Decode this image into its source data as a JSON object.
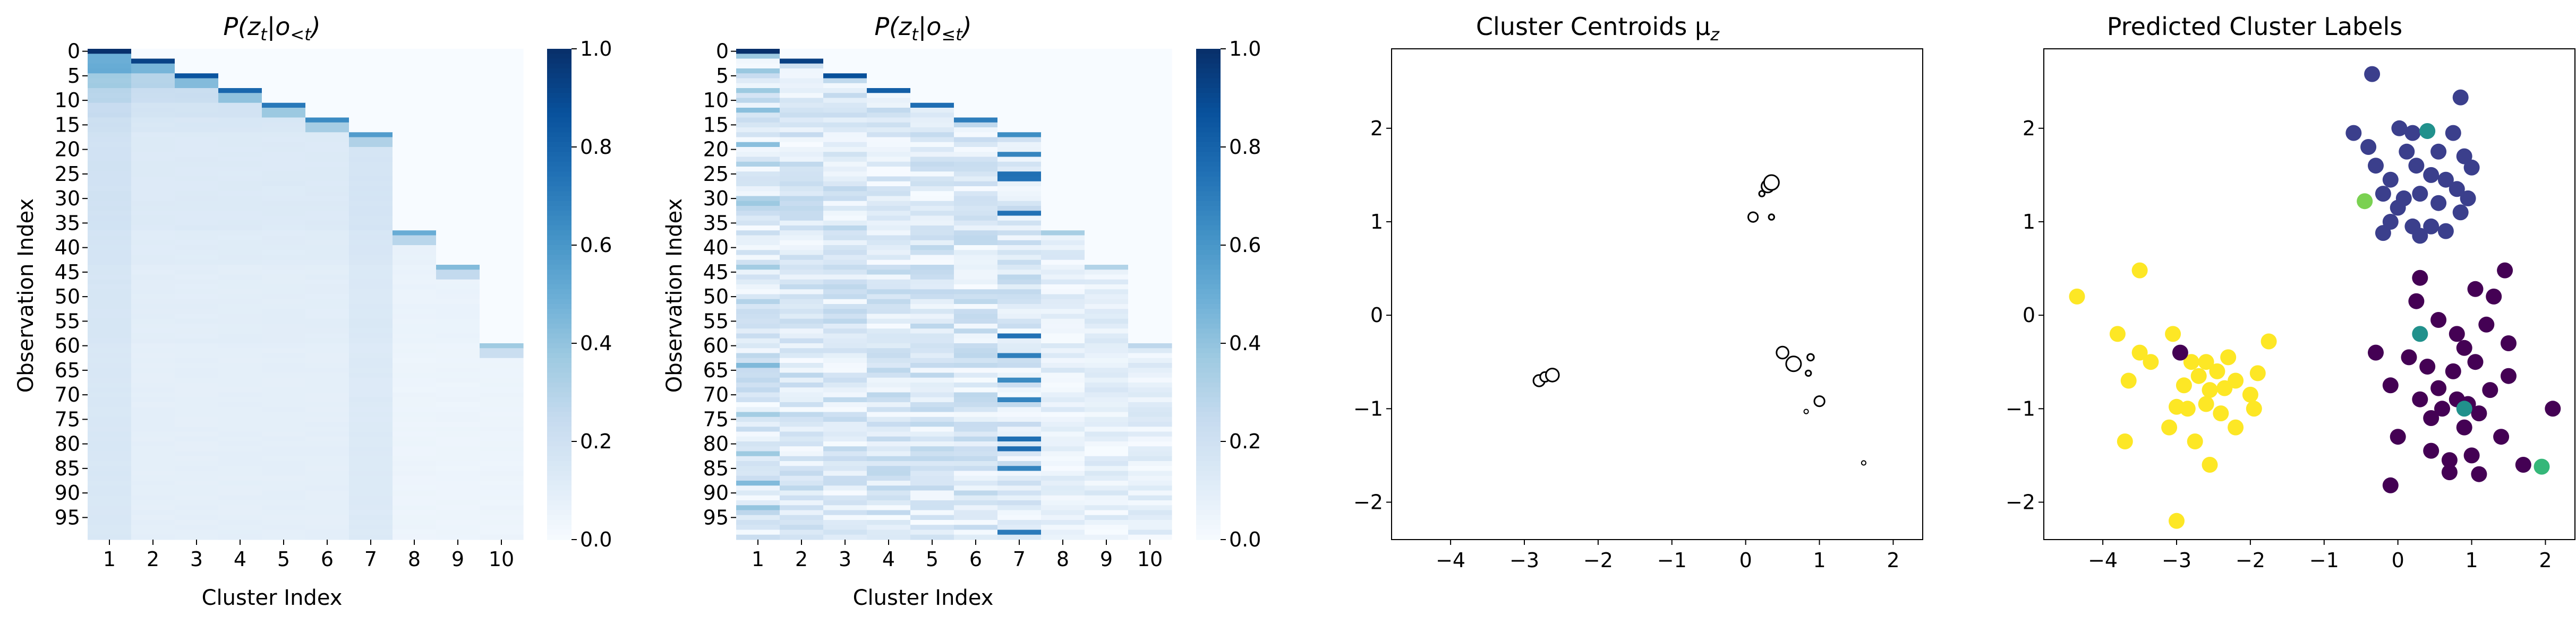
{
  "chart_data": [
    {
      "type": "heatmap",
      "title": "P(z_t | o_<t)",
      "title_main": "P(z",
      "title_sub": "t",
      "title_cond": "|o",
      "title_cond_sub": "<t",
      "title_end": ")",
      "xlabel": "Cluster Index",
      "ylabel": "Observation Index",
      "x_ticks": [
        "1",
        "2",
        "3",
        "4",
        "5",
        "6",
        "7",
        "8",
        "9",
        "10"
      ],
      "y_ticks": [
        "0",
        "5",
        "10",
        "15",
        "20",
        "25",
        "30",
        "35",
        "40",
        "45",
        "50",
        "55",
        "60",
        "65",
        "70",
        "75",
        "80",
        "85",
        "90",
        "95"
      ],
      "rows": 100,
      "cols": 10,
      "colorbar": {
        "min": 0.0,
        "max": 1.0,
        "ticks": [
          "0.0",
          "0.2",
          "0.4",
          "0.6",
          "0.8",
          "1.0"
        ],
        "colormap": "Blues"
      },
      "pattern": "cumulative-prior",
      "cluster_start_rows": [
        0,
        2,
        5,
        8,
        11,
        14,
        17,
        37,
        44,
        60
      ],
      "high_variance_columns": [
        1,
        7
      ],
      "typical_value": 0.12
    },
    {
      "type": "heatmap",
      "title": "P(z_t | o_<=t)",
      "title_main": "P(z",
      "title_sub": "t",
      "title_cond": "|o",
      "title_cond_sub": "≤t",
      "title_end": ")",
      "xlabel": "Cluster Index",
      "ylabel": "Observation Index",
      "x_ticks": [
        "1",
        "2",
        "3",
        "4",
        "5",
        "6",
        "7",
        "8",
        "9",
        "10"
      ],
      "y_ticks": [
        "0",
        "5",
        "10",
        "15",
        "20",
        "25",
        "30",
        "35",
        "40",
        "45",
        "50",
        "55",
        "60",
        "65",
        "70",
        "75",
        "80",
        "85",
        "90",
        "95"
      ],
      "rows": 100,
      "cols": 10,
      "colorbar": {
        "min": 0.0,
        "max": 1.0,
        "ticks": [
          "0.0",
          "0.2",
          "0.4",
          "0.6",
          "0.8",
          "1.0"
        ],
        "colormap": "Blues"
      },
      "pattern": "posterior-striped",
      "cluster_start_rows": [
        0,
        2,
        5,
        8,
        11,
        14,
        17,
        37,
        44,
        60
      ],
      "strong_rows_col7": [
        15,
        17,
        21,
        25,
        26,
        33,
        58,
        62,
        67,
        71,
        79,
        81,
        85,
        98
      ],
      "strong_rows_col1": [
        1,
        4,
        8,
        12,
        19,
        23,
        30,
        31,
        44,
        51,
        64,
        74,
        82,
        88,
        93
      ]
    },
    {
      "type": "scatter",
      "title": "Cluster Centroids μ_z",
      "title_main": "Cluster Centroids μ",
      "title_sub": "z",
      "xlim": [
        -4.8,
        2.4
      ],
      "ylim": [
        -2.4,
        2.85
      ],
      "x_ticks": [
        -4,
        -3,
        -2,
        -1,
        0,
        1,
        2
      ],
      "y_ticks": [
        -2,
        -1,
        0,
        1,
        2
      ],
      "marker": "open-circle-size-by-weight",
      "points": [
        {
          "x": -2.8,
          "y": -0.7,
          "r": 0.7
        },
        {
          "x": -2.72,
          "y": -0.66,
          "r": 0.55
        },
        {
          "x": -2.62,
          "y": -0.64,
          "r": 0.85
        },
        {
          "x": 0.22,
          "y": 1.3,
          "r": 0.2
        },
        {
          "x": 0.3,
          "y": 1.38,
          "r": 0.8
        },
        {
          "x": 0.35,
          "y": 1.42,
          "r": 1.0
        },
        {
          "x": 0.1,
          "y": 1.05,
          "r": 0.55
        },
        {
          "x": 0.35,
          "y": 1.05,
          "r": 0.2
        },
        {
          "x": 0.5,
          "y": -0.4,
          "r": 0.75
        },
        {
          "x": 0.65,
          "y": -0.52,
          "r": 1.0
        },
        {
          "x": 0.88,
          "y": -0.45,
          "r": 0.3
        },
        {
          "x": 0.85,
          "y": -0.62,
          "r": 0.2
        },
        {
          "x": 1.0,
          "y": -0.92,
          "r": 0.6
        },
        {
          "x": 0.82,
          "y": -1.03,
          "r": 0.1
        },
        {
          "x": 1.6,
          "y": -1.58,
          "r": 0.1
        }
      ]
    },
    {
      "type": "scatter",
      "title": "Predicted Cluster Labels",
      "title_main": "Predicted Cluster Labels",
      "title_sub": "",
      "xlim": [
        -4.8,
        2.4
      ],
      "ylim": [
        -2.4,
        2.85
      ],
      "x_ticks": [
        -4,
        -3,
        -2,
        -1,
        0,
        1,
        2
      ],
      "y_ticks": [
        -2,
        -1,
        0,
        1,
        2
      ],
      "colors": {
        "cluster_top": "#3b3f8c",
        "cluster_right": "#440154",
        "cluster_left": "#fde725",
        "teal": "#21918c",
        "green": "#35b779",
        "lime": "#7ad151"
      },
      "points": [
        {
          "x": -0.35,
          "y": 2.58,
          "c": "cluster_top"
        },
        {
          "x": 0.85,
          "y": 2.33,
          "c": "cluster_top"
        },
        {
          "x": -0.6,
          "y": 1.95,
          "c": "cluster_top"
        },
        {
          "x": 0.02,
          "y": 2.0,
          "c": "cluster_top"
        },
        {
          "x": 0.2,
          "y": 1.95,
          "c": "cluster_top"
        },
        {
          "x": 0.75,
          "y": 1.95,
          "c": "cluster_top"
        },
        {
          "x": -0.4,
          "y": 1.8,
          "c": "cluster_top"
        },
        {
          "x": 0.12,
          "y": 1.75,
          "c": "cluster_top"
        },
        {
          "x": 0.55,
          "y": 1.75,
          "c": "cluster_top"
        },
        {
          "x": 0.9,
          "y": 1.7,
          "c": "cluster_top"
        },
        {
          "x": -0.3,
          "y": 1.6,
          "c": "cluster_top"
        },
        {
          "x": 0.25,
          "y": 1.6,
          "c": "cluster_top"
        },
        {
          "x": 1.0,
          "y": 1.58,
          "c": "cluster_top"
        },
        {
          "x": -0.1,
          "y": 1.45,
          "c": "cluster_top"
        },
        {
          "x": 0.45,
          "y": 1.5,
          "c": "cluster_top"
        },
        {
          "x": 0.65,
          "y": 1.45,
          "c": "cluster_top"
        },
        {
          "x": -0.2,
          "y": 1.3,
          "c": "cluster_top"
        },
        {
          "x": 0.3,
          "y": 1.3,
          "c": "cluster_top"
        },
        {
          "x": 0.8,
          "y": 1.35,
          "c": "cluster_top"
        },
        {
          "x": 0.0,
          "y": 1.15,
          "c": "cluster_top"
        },
        {
          "x": 0.55,
          "y": 1.2,
          "c": "cluster_top"
        },
        {
          "x": -0.1,
          "y": 1.0,
          "c": "cluster_top"
        },
        {
          "x": 0.2,
          "y": 0.95,
          "c": "cluster_top"
        },
        {
          "x": 0.85,
          "y": 1.1,
          "c": "cluster_top"
        },
        {
          "x": 0.45,
          "y": 0.95,
          "c": "cluster_top"
        },
        {
          "x": -0.2,
          "y": 0.88,
          "c": "cluster_top"
        },
        {
          "x": 0.3,
          "y": 0.85,
          "c": "cluster_top"
        },
        {
          "x": 0.65,
          "y": 0.9,
          "c": "cluster_top"
        },
        {
          "x": 0.08,
          "y": 1.25,
          "c": "cluster_top"
        },
        {
          "x": 0.95,
          "y": 1.25,
          "c": "cluster_top"
        },
        {
          "x": -0.45,
          "y": 1.22,
          "c": "lime"
        },
        {
          "x": 0.4,
          "y": 1.97,
          "c": "teal"
        },
        {
          "x": 1.45,
          "y": 0.48,
          "c": "cluster_right"
        },
        {
          "x": 0.3,
          "y": 0.4,
          "c": "cluster_right"
        },
        {
          "x": 1.05,
          "y": 0.28,
          "c": "cluster_right"
        },
        {
          "x": 1.3,
          "y": 0.2,
          "c": "cluster_right"
        },
        {
          "x": 0.25,
          "y": 0.15,
          "c": "cluster_right"
        },
        {
          "x": 0.55,
          "y": -0.05,
          "c": "cluster_right"
        },
        {
          "x": 0.8,
          "y": -0.2,
          "c": "cluster_right"
        },
        {
          "x": 1.2,
          "y": -0.1,
          "c": "cluster_right"
        },
        {
          "x": 1.5,
          "y": -0.3,
          "c": "cluster_right"
        },
        {
          "x": 0.9,
          "y": -0.35,
          "c": "cluster_right"
        },
        {
          "x": -0.3,
          "y": -0.4,
          "c": "cluster_right"
        },
        {
          "x": 0.15,
          "y": -0.45,
          "c": "cluster_right"
        },
        {
          "x": 0.4,
          "y": -0.55,
          "c": "cluster_right"
        },
        {
          "x": 1.05,
          "y": -0.5,
          "c": "cluster_right"
        },
        {
          "x": 0.75,
          "y": -0.6,
          "c": "cluster_right"
        },
        {
          "x": 1.5,
          "y": -0.65,
          "c": "cluster_right"
        },
        {
          "x": -0.1,
          "y": -0.75,
          "c": "cluster_right"
        },
        {
          "x": 0.55,
          "y": -0.78,
          "c": "cluster_right"
        },
        {
          "x": 1.25,
          "y": -0.8,
          "c": "cluster_right"
        },
        {
          "x": 0.3,
          "y": -0.9,
          "c": "cluster_right"
        },
        {
          "x": 0.8,
          "y": -0.9,
          "c": "cluster_right"
        },
        {
          "x": 0.95,
          "y": -0.95,
          "c": "cluster_right"
        },
        {
          "x": 0.6,
          "y": -1.0,
          "c": "cluster_right"
        },
        {
          "x": 1.1,
          "y": -1.05,
          "c": "cluster_right"
        },
        {
          "x": 2.1,
          "y": -1.0,
          "c": "cluster_right"
        },
        {
          "x": 0.45,
          "y": -1.1,
          "c": "cluster_right"
        },
        {
          "x": 0.9,
          "y": -1.2,
          "c": "cluster_right"
        },
        {
          "x": 0.0,
          "y": -1.3,
          "c": "cluster_right"
        },
        {
          "x": 1.4,
          "y": -1.3,
          "c": "cluster_right"
        },
        {
          "x": 0.45,
          "y": -1.45,
          "c": "cluster_right"
        },
        {
          "x": 1.0,
          "y": -1.5,
          "c": "cluster_right"
        },
        {
          "x": 0.7,
          "y": -1.55,
          "c": "cluster_right"
        },
        {
          "x": 0.7,
          "y": -1.68,
          "c": "cluster_right"
        },
        {
          "x": 1.7,
          "y": -1.6,
          "c": "cluster_right"
        },
        {
          "x": -0.1,
          "y": -1.82,
          "c": "cluster_right"
        },
        {
          "x": 1.1,
          "y": -1.7,
          "c": "cluster_right"
        },
        {
          "x": 0.3,
          "y": -0.2,
          "c": "teal"
        },
        {
          "x": 0.9,
          "y": -1.0,
          "c": "teal"
        },
        {
          "x": 1.95,
          "y": -1.62,
          "c": "green"
        },
        {
          "x": -4.35,
          "y": 0.2,
          "c": "cluster_left"
        },
        {
          "x": -3.5,
          "y": 0.48,
          "c": "cluster_left"
        },
        {
          "x": -3.8,
          "y": -0.2,
          "c": "cluster_left"
        },
        {
          "x": -3.05,
          "y": -0.2,
          "c": "cluster_left"
        },
        {
          "x": -3.5,
          "y": -0.4,
          "c": "cluster_left"
        },
        {
          "x": -3.35,
          "y": -0.5,
          "c": "cluster_left"
        },
        {
          "x": -2.8,
          "y": -0.5,
          "c": "cluster_left"
        },
        {
          "x": -2.6,
          "y": -0.5,
          "c": "cluster_left"
        },
        {
          "x": -2.3,
          "y": -0.45,
          "c": "cluster_left"
        },
        {
          "x": -1.75,
          "y": -0.28,
          "c": "cluster_left"
        },
        {
          "x": -3.65,
          "y": -0.7,
          "c": "cluster_left"
        },
        {
          "x": -2.7,
          "y": -0.65,
          "c": "cluster_left"
        },
        {
          "x": -2.45,
          "y": -0.6,
          "c": "cluster_left"
        },
        {
          "x": -2.2,
          "y": -0.7,
          "c": "cluster_left"
        },
        {
          "x": -1.9,
          "y": -0.62,
          "c": "cluster_left"
        },
        {
          "x": -2.9,
          "y": -0.75,
          "c": "cluster_left"
        },
        {
          "x": -2.55,
          "y": -0.8,
          "c": "cluster_left"
        },
        {
          "x": -2.35,
          "y": -0.78,
          "c": "cluster_left"
        },
        {
          "x": -2.0,
          "y": -0.85,
          "c": "cluster_left"
        },
        {
          "x": -3.0,
          "y": -0.98,
          "c": "cluster_left"
        },
        {
          "x": -2.85,
          "y": -1.0,
          "c": "cluster_left"
        },
        {
          "x": -2.6,
          "y": -0.95,
          "c": "cluster_left"
        },
        {
          "x": -1.95,
          "y": -1.0,
          "c": "cluster_left"
        },
        {
          "x": -2.4,
          "y": -1.05,
          "c": "cluster_left"
        },
        {
          "x": -3.1,
          "y": -1.2,
          "c": "cluster_left"
        },
        {
          "x": -2.2,
          "y": -1.2,
          "c": "cluster_left"
        },
        {
          "x": -3.7,
          "y": -1.35,
          "c": "cluster_left"
        },
        {
          "x": -2.75,
          "y": -1.35,
          "c": "cluster_left"
        },
        {
          "x": -2.55,
          "y": -1.6,
          "c": "cluster_left"
        },
        {
          "x": -3.0,
          "y": -2.2,
          "c": "cluster_left"
        },
        {
          "x": -2.95,
          "y": -0.4,
          "c": "cluster_right"
        }
      ]
    }
  ]
}
